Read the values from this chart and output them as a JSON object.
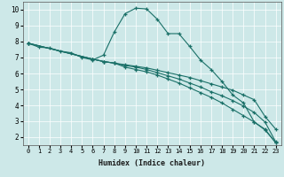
{
  "xlabel": "Humidex (Indice chaleur)",
  "ylabel": "",
  "xlim": [
    -0.5,
    23.5
  ],
  "ylim": [
    1.5,
    10.5
  ],
  "xticks": [
    0,
    1,
    2,
    3,
    4,
    5,
    6,
    7,
    8,
    9,
    10,
    11,
    12,
    13,
    14,
    15,
    16,
    17,
    18,
    19,
    20,
    21,
    22,
    23
  ],
  "yticks": [
    2,
    3,
    4,
    5,
    6,
    7,
    8,
    9,
    10
  ],
  "bg_color": "#cde8e8",
  "line_color": "#1a7068",
  "lines": [
    {
      "x": [
        0,
        1,
        2,
        3,
        4,
        5,
        6,
        7,
        8,
        9,
        10,
        11,
        12,
        13,
        14,
        15,
        16,
        17,
        18,
        19,
        20,
        21,
        22,
        23
      ],
      "y": [
        7.9,
        7.65,
        7.6,
        7.4,
        7.3,
        7.0,
        6.85,
        7.15,
        8.6,
        9.75,
        10.1,
        10.05,
        9.4,
        8.5,
        8.5,
        7.7,
        6.85,
        6.25,
        5.5,
        4.65,
        4.15,
        2.95,
        2.45,
        1.65
      ]
    },
    {
      "x": [
        0,
        6,
        7,
        8,
        9,
        10,
        11,
        12,
        13,
        14,
        15,
        16,
        17,
        18,
        19,
        20,
        21,
        22,
        23
      ],
      "y": [
        7.9,
        6.9,
        6.75,
        6.65,
        6.55,
        6.45,
        6.35,
        6.2,
        6.05,
        5.9,
        5.75,
        5.55,
        5.35,
        5.15,
        4.95,
        4.65,
        4.35,
        3.3,
        2.5
      ]
    },
    {
      "x": [
        0,
        6,
        7,
        8,
        9,
        10,
        11,
        12,
        13,
        14,
        15,
        16,
        17,
        18,
        19,
        20,
        21,
        22,
        23
      ],
      "y": [
        7.9,
        6.9,
        6.75,
        6.65,
        6.5,
        6.4,
        6.25,
        6.05,
        5.85,
        5.65,
        5.4,
        5.15,
        4.85,
        4.6,
        4.3,
        3.95,
        3.55,
        2.95,
        1.7
      ]
    },
    {
      "x": [
        0,
        6,
        7,
        8,
        9,
        10,
        11,
        12,
        13,
        14,
        15,
        16,
        17,
        18,
        19,
        20,
        21,
        22,
        23
      ],
      "y": [
        7.9,
        6.9,
        6.75,
        6.65,
        6.4,
        6.25,
        6.1,
        5.9,
        5.65,
        5.4,
        5.1,
        4.8,
        4.5,
        4.15,
        3.75,
        3.35,
        2.95,
        2.5,
        1.65
      ]
    }
  ]
}
